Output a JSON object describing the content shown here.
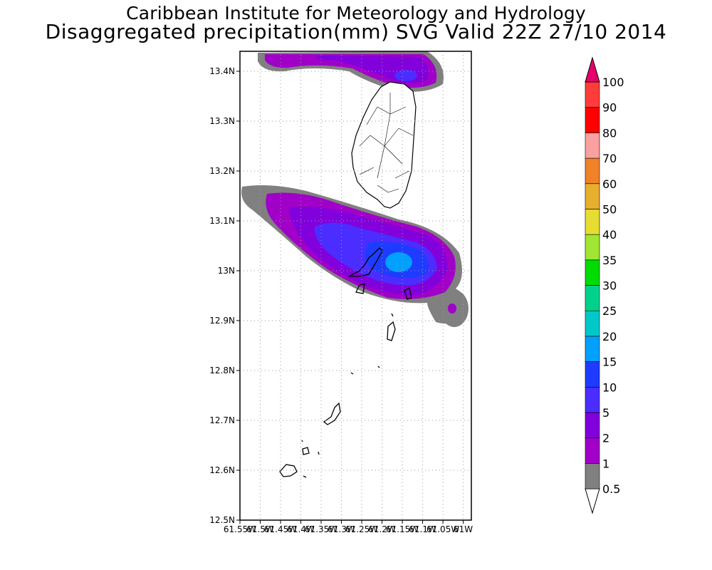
{
  "header": {
    "title": "Caribbean Institute for Meteorology and Hydrology",
    "subtitle": "Disaggregated precipitation(mm) SVG Valid 22Z 27/10 2014"
  },
  "map": {
    "lat_labels": [
      "13.4N",
      "13.3N",
      "13.2N",
      "13.1N",
      "13N",
      "12.9N",
      "12.8N",
      "12.7N",
      "12.6N",
      "12.5N"
    ],
    "lon_labels": [
      "61.55W",
      "61.5W",
      "61.45W",
      "61.4W",
      "61.35W",
      "61.3W",
      "61.25W",
      "61.2W",
      "61.15W",
      "61.1W",
      "61.05W",
      "61W"
    ],
    "lat_range": [
      12.5,
      13.44
    ],
    "lon_range": [
      -61.55,
      -60.98
    ],
    "grid": true
  },
  "legend": {
    "levels": [
      "0.5",
      "1",
      "2",
      "5",
      "10",
      "15",
      "20",
      "25",
      "30",
      "35",
      "40",
      "50",
      "60",
      "70",
      "80",
      "90",
      "100"
    ],
    "colors": [
      "#808080",
      "#a000c8",
      "#8200dc",
      "#4b2dff",
      "#1e3cff",
      "#00a0ff",
      "#00c8c8",
      "#00d28c",
      "#00dc00",
      "#a0e632",
      "#e6dc32",
      "#e6af2d",
      "#f08228",
      "#faa0a0",
      "#ff0000",
      "#ff3c3c",
      "#e6006e"
    ]
  }
}
